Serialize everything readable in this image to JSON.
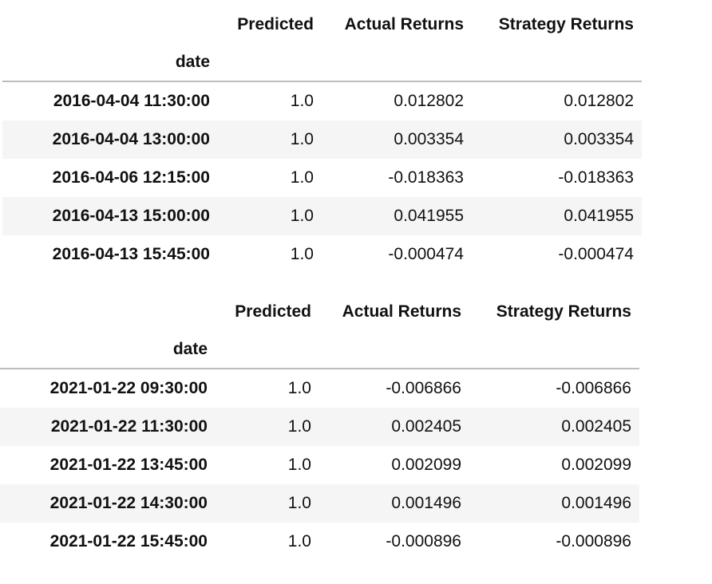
{
  "tables": [
    {
      "columns": [
        "Predicted",
        "Actual Returns",
        "Strategy Returns"
      ],
      "index_name": "date",
      "rows": [
        {
          "index": "2016-04-04 11:30:00",
          "values": [
            "1.0",
            "0.012802",
            "0.012802"
          ]
        },
        {
          "index": "2016-04-04 13:00:00",
          "values": [
            "1.0",
            "0.003354",
            "0.003354"
          ]
        },
        {
          "index": "2016-04-06 12:15:00",
          "values": [
            "1.0",
            "-0.018363",
            "-0.018363"
          ]
        },
        {
          "index": "2016-04-13 15:00:00",
          "values": [
            "1.0",
            "0.041955",
            "0.041955"
          ]
        },
        {
          "index": "2016-04-13 15:45:00",
          "values": [
            "1.0",
            "-0.000474",
            "-0.000474"
          ]
        }
      ]
    },
    {
      "columns": [
        "Predicted",
        "Actual Returns",
        "Strategy Returns"
      ],
      "index_name": "date",
      "rows": [
        {
          "index": "2021-01-22 09:30:00",
          "values": [
            "1.0",
            "-0.006866",
            "-0.006866"
          ]
        },
        {
          "index": "2021-01-22 11:30:00",
          "values": [
            "1.0",
            "0.002405",
            "0.002405"
          ]
        },
        {
          "index": "2021-01-22 13:45:00",
          "values": [
            "1.0",
            "0.002099",
            "0.002099"
          ]
        },
        {
          "index": "2021-01-22 14:30:00",
          "values": [
            "1.0",
            "0.001496",
            "0.001496"
          ]
        },
        {
          "index": "2021-01-22 15:45:00",
          "values": [
            "1.0",
            "-0.000896",
            "-0.000896"
          ]
        }
      ]
    }
  ]
}
